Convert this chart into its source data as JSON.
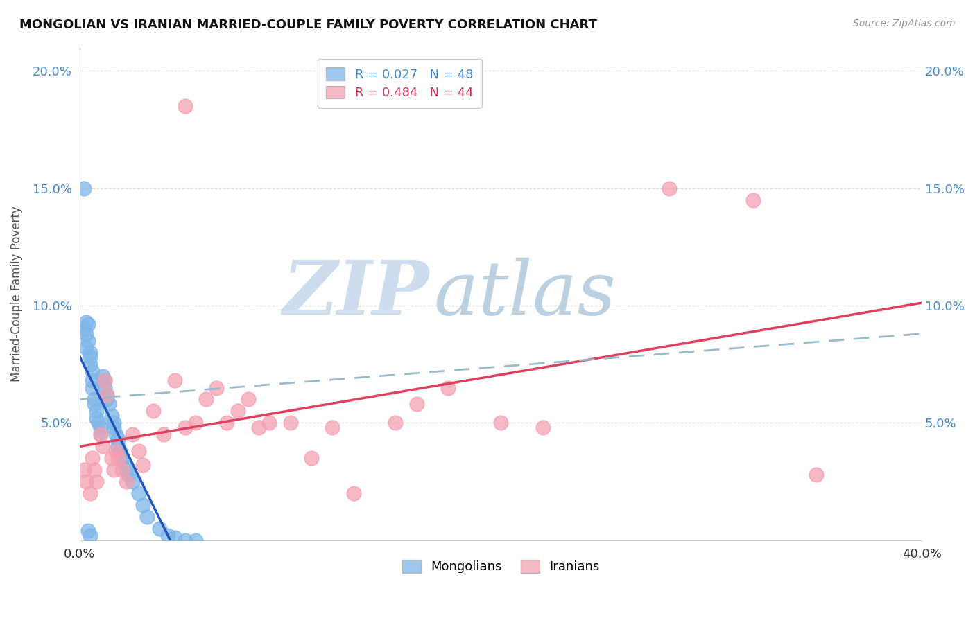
{
  "title": "MONGOLIAN VS IRANIAN MARRIED-COUPLE FAMILY POVERTY CORRELATION CHART",
  "source": "Source: ZipAtlas.com",
  "ylabel": "Married-Couple Family Poverty",
  "xlim": [
    0.0,
    0.4
  ],
  "ylim": [
    0.0,
    0.21
  ],
  "x_ticks": [
    0.0,
    0.05,
    0.1,
    0.15,
    0.2,
    0.25,
    0.3,
    0.35,
    0.4
  ],
  "y_ticks": [
    0.0,
    0.05,
    0.1,
    0.15,
    0.2
  ],
  "mongolian_color": "#7EB6E8",
  "iranian_color": "#F4A0B0",
  "mongolian_line_color": "#2255BB",
  "iranian_line_color": "#E04060",
  "dash_line_color": "#99BBCC",
  "mongolian_R": 0.027,
  "mongolian_N": 48,
  "iranian_R": 0.484,
  "iranian_N": 44,
  "watermark_zip_color": "#C8DCF0",
  "watermark_atlas_color": "#B0CCDD",
  "mongolian_x": [
    0.002,
    0.003,
    0.003,
    0.004,
    0.004,
    0.005,
    0.005,
    0.005,
    0.006,
    0.006,
    0.006,
    0.007,
    0.007,
    0.008,
    0.008,
    0.009,
    0.01,
    0.01,
    0.011,
    0.012,
    0.012,
    0.013,
    0.013,
    0.014,
    0.015,
    0.016,
    0.016,
    0.017,
    0.018,
    0.018,
    0.019,
    0.02,
    0.021,
    0.022,
    0.023,
    0.025,
    0.028,
    0.03,
    0.032,
    0.038,
    0.042,
    0.045,
    0.05,
    0.055,
    0.002,
    0.003,
    0.004,
    0.005
  ],
  "mongolian_y": [
    0.09,
    0.093,
    0.088,
    0.092,
    0.085,
    0.08,
    0.078,
    0.075,
    0.072,
    0.068,
    0.065,
    0.06,
    0.058,
    0.055,
    0.052,
    0.05,
    0.048,
    0.045,
    0.07,
    0.068,
    0.065,
    0.062,
    0.06,
    0.058,
    0.053,
    0.05,
    0.048,
    0.045,
    0.043,
    0.04,
    0.038,
    0.035,
    0.033,
    0.03,
    0.028,
    0.025,
    0.02,
    0.015,
    0.01,
    0.005,
    0.002,
    0.001,
    0.0,
    0.0,
    0.15,
    0.082,
    0.004,
    0.002
  ],
  "iranian_x": [
    0.002,
    0.003,
    0.005,
    0.006,
    0.007,
    0.008,
    0.01,
    0.011,
    0.012,
    0.013,
    0.015,
    0.016,
    0.017,
    0.018,
    0.02,
    0.022,
    0.025,
    0.028,
    0.03,
    0.035,
    0.04,
    0.045,
    0.05,
    0.055,
    0.06,
    0.065,
    0.07,
    0.075,
    0.08,
    0.085,
    0.09,
    0.1,
    0.11,
    0.12,
    0.13,
    0.15,
    0.16,
    0.175,
    0.2,
    0.22,
    0.28,
    0.32,
    0.35,
    0.05
  ],
  "iranian_y": [
    0.03,
    0.025,
    0.02,
    0.035,
    0.03,
    0.025,
    0.045,
    0.04,
    0.068,
    0.062,
    0.035,
    0.03,
    0.038,
    0.035,
    0.03,
    0.025,
    0.045,
    0.038,
    0.032,
    0.055,
    0.045,
    0.068,
    0.048,
    0.05,
    0.06,
    0.065,
    0.05,
    0.055,
    0.06,
    0.048,
    0.05,
    0.05,
    0.035,
    0.048,
    0.02,
    0.05,
    0.058,
    0.065,
    0.05,
    0.048,
    0.15,
    0.145,
    0.028,
    0.185
  ]
}
